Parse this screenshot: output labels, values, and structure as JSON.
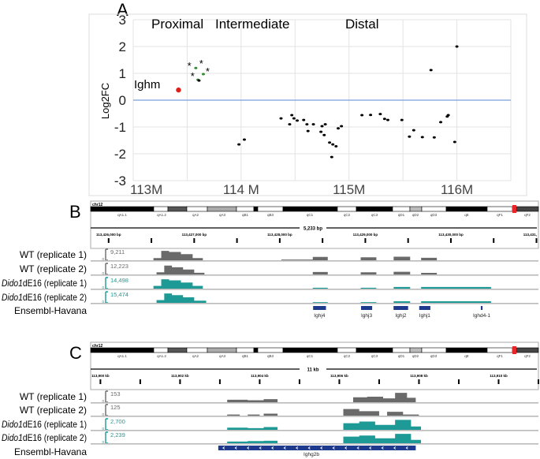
{
  "colors": {
    "wt": "#6a6a6a",
    "dido": "#1d9a95",
    "gene": "#1e3a8c",
    "zero_line": "#7b9fdc",
    "ighm": "#e0201b",
    "green": "#2e8b2e",
    "marker": "#e8262a"
  },
  "chart_data": [
    {
      "panel": "A",
      "type": "scatter",
      "ylabel": "Log2FC",
      "xlim": [
        113.0,
        116.5
      ],
      "ylim": [
        -3,
        3
      ],
      "xticks": [
        {
          "v": 113,
          "label": "113M"
        },
        {
          "v": 114,
          "label": "114 M"
        },
        {
          "v": 115,
          "label": "115M"
        },
        {
          "v": 116,
          "label": "116M"
        }
      ],
      "yticks": [
        {
          "v": 3,
          "label": "3"
        },
        {
          "v": 2,
          "label": "2"
        },
        {
          "v": 1,
          "label": "1"
        },
        {
          "v": 0,
          "label": "0"
        },
        {
          "v": -1,
          "label": "-1"
        },
        {
          "v": -2,
          "label": "-2"
        },
        {
          "v": -3,
          "label": "-3"
        }
      ],
      "grid": true,
      "reference_line_y": 0,
      "region_labels": [
        {
          "label": "Proximal",
          "x": 113.33
        },
        {
          "label": "Intermediate",
          "x": 114.35
        },
        {
          "label": "Distal",
          "x": 115.1
        }
      ],
      "annotation": {
        "label": "Ighm",
        "x": 113.42,
        "y": 0.38
      },
      "series": [
        {
          "color": "#e0201b",
          "points": [
            [
              113.42,
              0.38
            ]
          ]
        },
        {
          "color": "#2e8b2e",
          "points": [
            [
              113.58,
              1.2
            ],
            [
              113.65,
              0.97
            ],
            [
              113.6,
              0.76
            ]
          ]
        },
        {
          "marker": "star",
          "points": [
            [
              113.52,
              1.32
            ],
            [
              113.63,
              1.41
            ],
            [
              113.69,
              1.12
            ],
            [
              113.55,
              0.94
            ]
          ]
        },
        {
          "color": "#000000",
          "points": [
            [
              113.61,
              0.73
            ],
            [
              113.98,
              -1.65
            ],
            [
              114.03,
              -1.47
            ],
            [
              114.37,
              -0.68
            ],
            [
              114.45,
              -0.9
            ],
            [
              114.47,
              -0.56
            ],
            [
              114.49,
              -0.68
            ],
            [
              114.52,
              -0.76
            ],
            [
              114.58,
              -0.74
            ],
            [
              114.61,
              -0.9
            ],
            [
              114.62,
              -1.15
            ],
            [
              114.67,
              -0.9
            ],
            [
              114.74,
              -1.18
            ],
            [
              114.75,
              -0.97
            ],
            [
              114.78,
              -0.9
            ],
            [
              114.77,
              -1.3
            ],
            [
              114.82,
              -1.58
            ],
            [
              114.85,
              -1.65
            ],
            [
              114.88,
              -1.72
            ],
            [
              114.84,
              -2.12
            ],
            [
              114.9,
              -1.05
            ],
            [
              114.93,
              -0.97
            ],
            [
              115.12,
              -0.56
            ],
            [
              115.2,
              -0.55
            ],
            [
              115.29,
              -0.52
            ],
            [
              115.33,
              -0.7
            ],
            [
              115.36,
              -0.74
            ],
            [
              115.49,
              -0.74
            ],
            [
              115.56,
              -1.36
            ],
            [
              115.6,
              -1.12
            ],
            [
              115.68,
              -1.38
            ],
            [
              115.76,
              1.12
            ],
            [
              115.79,
              -1.39
            ],
            [
              115.85,
              -0.82
            ],
            [
              115.91,
              -0.61
            ],
            [
              115.92,
              -0.56
            ],
            [
              115.98,
              -1.56
            ],
            [
              116.0,
              2.0
            ]
          ]
        }
      ]
    },
    {
      "panel": "B",
      "type": "area",
      "chromosome": "chr12",
      "bands": [
        "qA1.1",
        "qA1.2",
        "qA2",
        "qA3",
        "qB1",
        "qB3",
        "qC1",
        "qC2",
        "qC3",
        "qD1",
        "qD2",
        "qD3",
        "qE",
        "qF1",
        "qF2"
      ],
      "span_label": "5,233 bp",
      "range_bp": [
        113425790,
        113431023
      ],
      "tick_labels": [
        {
          "bp": 113426000,
          "label": "113,426,000 bp"
        },
        {
          "bp": 113427000,
          "label": "113,427,000 bp"
        },
        {
          "bp": 113428000,
          "label": "113,428,000 bp"
        },
        {
          "bp": 113429000,
          "label": "113,429,000 bp"
        },
        {
          "bp": 113430000,
          "label": "113,430,000 bp"
        },
        {
          "bp": 113431000,
          "label": "113,431,"
        }
      ],
      "tracks": [
        {
          "label_italic": "",
          "label": "WT (replicate 1)",
          "max": "9,211",
          "min": "0",
          "group": "wt",
          "coverage": [
            [
              113426524,
              113426615,
              0.2
            ],
            [
              113426615,
              113426707,
              0.85
            ],
            [
              113426707,
              113426845,
              0.75
            ],
            [
              113426845,
              113426982,
              0.55
            ],
            [
              113426982,
              113427101,
              0.2
            ],
            [
              113428019,
              113428386,
              0.06
            ],
            [
              113428386,
              113428561,
              0.3
            ],
            [
              113428946,
              113429129,
              0.27
            ],
            [
              113429331,
              113429524,
              0.32
            ],
            [
              113429652,
              113429836,
              0.22
            ]
          ]
        },
        {
          "label_italic": "",
          "label": "WT (replicate 2)",
          "max": "12,223",
          "min": "0",
          "group": "wt",
          "coverage": [
            [
              113426560,
              113426650,
              0.2
            ],
            [
              113426650,
              113426740,
              0.8
            ],
            [
              113426740,
              113426870,
              0.65
            ],
            [
              113426870,
              113427000,
              0.45
            ],
            [
              113427000,
              113427120,
              0.15
            ],
            [
              113428386,
              113428561,
              0.22
            ],
            [
              113428946,
              113429129,
              0.2
            ],
            [
              113429331,
              113429524,
              0.24
            ],
            [
              113429652,
              113429836,
              0.14
            ]
          ]
        },
        {
          "label_italic": "Dido1",
          "label": "dE16 (replicate 1)",
          "max": "14,498",
          "min": "0",
          "group": "dido",
          "coverage": [
            [
              113426524,
              113426615,
              0.25
            ],
            [
              113426615,
              113426707,
              0.85
            ],
            [
              113426707,
              113426845,
              0.75
            ],
            [
              113426845,
              113426982,
              0.55
            ],
            [
              113426982,
              113427101,
              0.25
            ],
            [
              113428386,
              113428561,
              0.08
            ],
            [
              113428946,
              113429129,
              0.08
            ],
            [
              113429331,
              113429524,
              0.15
            ],
            [
              113429652,
              113430469,
              0.15
            ]
          ]
        },
        {
          "label_italic": "Dido1",
          "label": "dE16 (replicate 2)",
          "max": "15,474",
          "min": "0",
          "group": "dido",
          "coverage": [
            [
              113426560,
              113426650,
              0.25
            ],
            [
              113426650,
              113426740,
              0.85
            ],
            [
              113426740,
              113426870,
              0.7
            ],
            [
              113426870,
              113427000,
              0.5
            ],
            [
              113427000,
              113427140,
              0.2
            ],
            [
              113428386,
              113428561,
              0.06
            ],
            [
              113428946,
              113429129,
              0.06
            ],
            [
              113429331,
              113429524,
              0.14
            ],
            [
              113429652,
              113430469,
              0.14
            ]
          ]
        }
      ],
      "annotation_track": "Ensembl-Havana",
      "genes": [
        {
          "name": "Ighj4",
          "start": 113428390,
          "end": 113428540
        },
        {
          "name": "Ighj3",
          "start": 113428950,
          "end": 113429080
        },
        {
          "name": "Ighj2",
          "start": 113429330,
          "end": 113429500
        },
        {
          "name": "Ighj1",
          "start": 113429630,
          "end": 113429760
        },
        {
          "name": "Ighd4-1",
          "start": 113430350,
          "end": 113430370
        }
      ]
    },
    {
      "panel": "C",
      "type": "area",
      "chromosome": "chr12",
      "bands": [
        "qA1.1",
        "qA1.2",
        "qA2",
        "qA3",
        "qB1",
        "qB3",
        "qC1",
        "qC2",
        "qC3",
        "qD1",
        "qD2",
        "qD3",
        "qE",
        "qF1",
        "qF2"
      ],
      "span_label": "11 kb",
      "range_bp": [
        113899755,
        113911000
      ],
      "tick_labels": [
        {
          "bp": 113900000,
          "label": "113,900 kb"
        },
        {
          "bp": 113902000,
          "label": "113,902 kb"
        },
        {
          "bp": 113904000,
          "label": "113,904 kb"
        },
        {
          "bp": 113906000,
          "label": "113,906 kb"
        },
        {
          "bp": 113908000,
          "label": "113,908 kb"
        },
        {
          "bp": 113910000,
          "label": "113,910 kb"
        }
      ],
      "tracks": [
        {
          "label_italic": "",
          "label": "WT (replicate 1)",
          "max": "153",
          "min": "0",
          "group": "wt",
          "coverage": [
            [
              113903184,
              113903700,
              0.22
            ],
            [
              113903700,
              113904100,
              0.18
            ],
            [
              113904100,
              113904449,
              0.28
            ],
            [
              113906347,
              113906700,
              0.45
            ],
            [
              113906700,
              113907100,
              0.5
            ],
            [
              113907100,
              113907400,
              0.35
            ],
            [
              113907400,
              113907700,
              0.85
            ],
            [
              113907700,
              113907919,
              0.4
            ]
          ]
        },
        {
          "label_italic": "",
          "label": "WT (replicate 2)",
          "max": "125",
          "min": "0",
          "group": "wt",
          "coverage": [
            [
              113903184,
              113903500,
              0.1
            ],
            [
              113903700,
              113904000,
              0.1
            ],
            [
              113904100,
              113904449,
              0.18
            ],
            [
              113906100,
              113906500,
              0.6
            ],
            [
              113906500,
              113907000,
              0.4
            ],
            [
              113907200,
              113907600,
              0.35
            ],
            [
              113907600,
              113908000,
              0.1
            ]
          ]
        },
        {
          "label_italic": "Dido1",
          "label": "dE16 (replicate 1)",
          "max": "2,700",
          "min": "0",
          "group": "dido",
          "coverage": [
            [
              113903184,
              113903700,
              0.2
            ],
            [
              113903700,
              113904100,
              0.15
            ],
            [
              113904100,
              113904449,
              0.25
            ],
            [
              113906100,
              113906500,
              0.6
            ],
            [
              113906500,
              113906900,
              0.75
            ],
            [
              113906900,
              113907400,
              0.45
            ],
            [
              113907400,
              113907800,
              0.9
            ],
            [
              113907800,
              113908050,
              0.3
            ]
          ]
        },
        {
          "label_italic": "Dido1",
          "label": "dE16 (replicate 2)",
          "max": "2,239",
          "min": "0",
          "group": "dido",
          "coverage": [
            [
              113903184,
              113903700,
              0.15
            ],
            [
              113903700,
              113904100,
              0.2
            ],
            [
              113904100,
              113904449,
              0.22
            ],
            [
              113906100,
              113906500,
              0.6
            ],
            [
              113906500,
              113906900,
              0.7
            ],
            [
              113906900,
              113907400,
              0.45
            ],
            [
              113907400,
              113907800,
              0.85
            ],
            [
              113907800,
              113908050,
              0.3
            ]
          ]
        }
      ],
      "annotation_track": "Ensembl-Havana",
      "genes": [
        {
          "name": "Ighg2b",
          "start": 113902960,
          "end": 113907919,
          "strand": "-"
        }
      ]
    }
  ]
}
